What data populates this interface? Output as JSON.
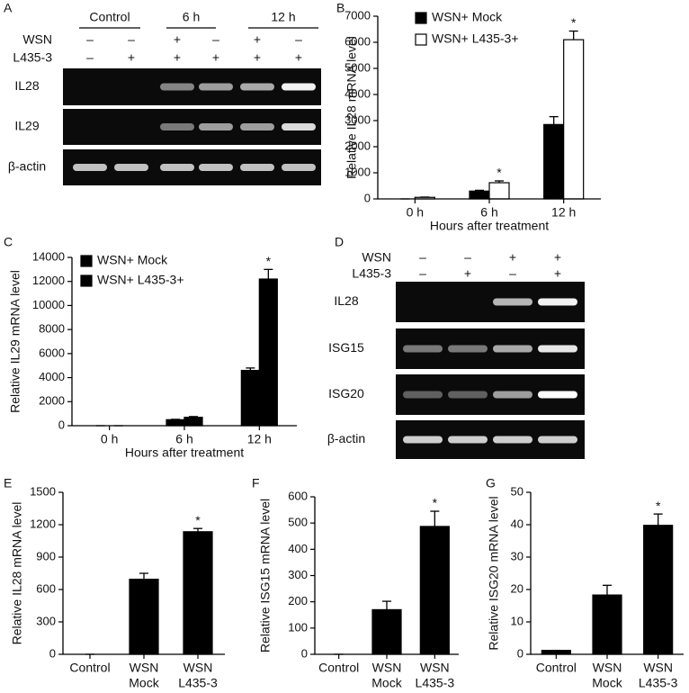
{
  "gels": [
    {
      "panel": "A",
      "groups": [
        "Control",
        "6 h",
        "12 h"
      ],
      "rows": [
        {
          "label": "WSN",
          "marks": [
            "–",
            "–",
            "+",
            "–",
            "+",
            "–"
          ]
        },
        {
          "label": "L435-3",
          "marks": [
            "–",
            "+",
            "+",
            "+",
            "+",
            "+"
          ]
        }
      ],
      "bands": [
        "IL28",
        "IL29",
        "β-actin"
      ]
    },
    {
      "panel": "D",
      "rows": [
        {
          "label": "WSN",
          "marks": [
            "–",
            "–",
            "+",
            "+"
          ]
        },
        {
          "label": "L435-3",
          "marks": [
            "–",
            "+",
            "–",
            "+"
          ]
        }
      ],
      "bands": [
        "IL28",
        "ISG15",
        "ISG20",
        "β-actin"
      ]
    }
  ],
  "chart_data": [
    {
      "type": "bar",
      "panel": "B",
      "ylabel": "Relative IL28  mRNA level",
      "xlabel": "Hours after treatment",
      "categories": [
        "0 h",
        "6 h",
        "12 h"
      ],
      "series": [
        {
          "name": "WSN+ Mock",
          "color": "#000000",
          "values": [
            0,
            300,
            2850
          ],
          "errors": [
            0,
            30,
            300
          ],
          "significance": [
            null,
            null,
            null
          ]
        },
        {
          "name": "WSN+ L435-3+",
          "color": "#ffffff",
          "values": [
            60,
            620,
            6100
          ],
          "errors": [
            10,
            70,
            330
          ],
          "significance": [
            null,
            "*",
            "*"
          ]
        }
      ],
      "legend_colors": [
        "#000000",
        "#ffffff"
      ],
      "ylim": [
        0,
        7000
      ],
      "yticks": [
        0,
        1000,
        2000,
        3000,
        4000,
        5000,
        6000,
        7000
      ]
    },
    {
      "type": "bar",
      "panel": "C",
      "ylabel": "Relative IL29  mRNA level",
      "xlabel": "Hours after treatment",
      "categories": [
        "0 h",
        "6 h",
        "12 h"
      ],
      "series": [
        {
          "name": "WSN+ Mock",
          "color": "#000000",
          "values": [
            0,
            500,
            4600
          ],
          "errors": [
            0,
            30,
            200
          ],
          "significance": [
            null,
            null,
            null
          ]
        },
        {
          "name": "WSN+ L435-3+",
          "color": "#000000",
          "values": [
            0,
            700,
            12200
          ],
          "errors": [
            0,
            60,
            800
          ],
          "significance": [
            null,
            null,
            "*"
          ]
        }
      ],
      "ylim": [
        0,
        14000
      ],
      "yticks": [
        0,
        2000,
        4000,
        6000,
        8000,
        10000,
        12000,
        14000
      ]
    },
    {
      "type": "bar",
      "panel": "E",
      "ylabel": "Relative IL28  mRNA level",
      "categories": [
        [
          "Control"
        ],
        [
          "WSN",
          "Mock"
        ],
        [
          "WSN",
          "L435-3"
        ]
      ],
      "series": [
        {
          "color": "#000000",
          "values": [
            0,
            695,
            1135
          ],
          "errors": [
            0,
            55,
            30
          ],
          "significance": [
            null,
            null,
            "*"
          ]
        }
      ],
      "ylim": [
        0,
        1500
      ],
      "yticks": [
        0,
        300,
        600,
        900,
        1200,
        1500
      ]
    },
    {
      "type": "bar",
      "panel": "F",
      "ylabel": "Relative ISG15  mRNA level",
      "categories": [
        [
          "Control"
        ],
        [
          "WSN",
          "Mock"
        ],
        [
          "WSN",
          "L435-3"
        ]
      ],
      "series": [
        {
          "color": "#000000",
          "values": [
            0,
            170,
            487
          ],
          "errors": [
            0,
            32,
            58
          ],
          "significance": [
            null,
            null,
            "*"
          ]
        }
      ],
      "ylim": [
        0,
        600
      ],
      "yticks": [
        0,
        100,
        200,
        300,
        400,
        500,
        600
      ]
    },
    {
      "type": "bar",
      "panel": "G",
      "ylabel": "Relative ISG20 mRNA level",
      "categories": [
        [
          "Control"
        ],
        [
          "WSN",
          "Mock"
        ],
        [
          "WSN",
          "L435-3"
        ]
      ],
      "series": [
        {
          "color": "#000000",
          "values": [
            1.2,
            18.3,
            39.8
          ],
          "errors": [
            0,
            3,
            3.5
          ],
          "significance": [
            null,
            null,
            "*"
          ]
        }
      ],
      "ylim": [
        0,
        50
      ],
      "yticks": [
        0,
        10,
        20,
        30,
        40,
        50
      ]
    }
  ]
}
